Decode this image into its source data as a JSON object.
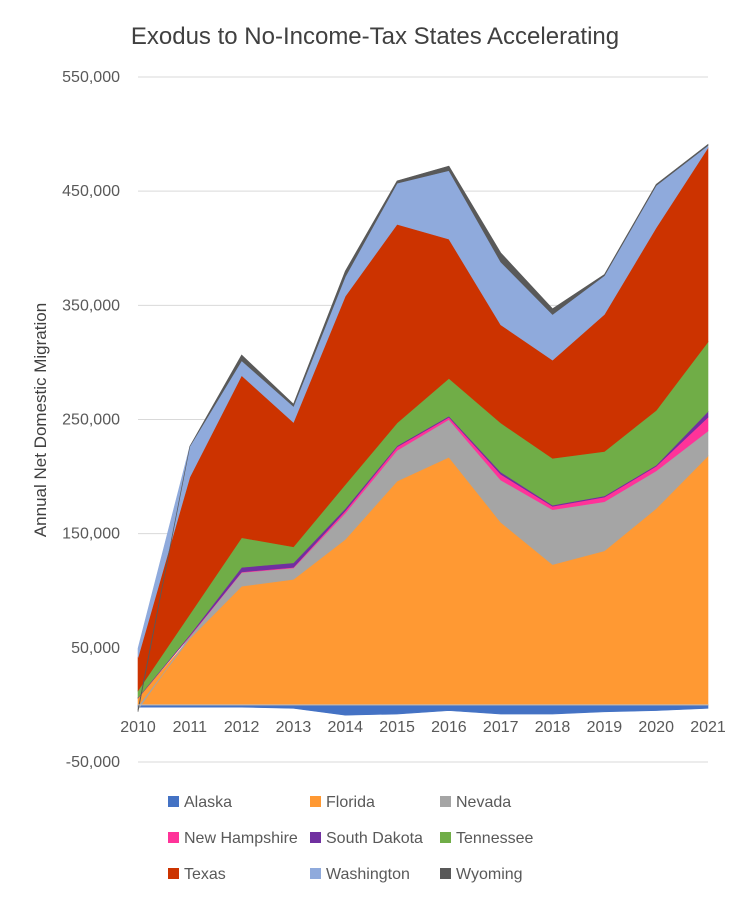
{
  "chart_data": {
    "type": "area",
    "stacked": true,
    "title": "Exodus to No-Income-Tax States Accelerating",
    "xlabel": "",
    "ylabel": "Annual Net Domestic Migration",
    "x": [
      "2010",
      "2011",
      "2012",
      "2013",
      "2014",
      "2015",
      "2016",
      "2017",
      "2018",
      "2019",
      "2020",
      "2021"
    ],
    "ylim": [
      -50000,
      550000
    ],
    "yticks": [
      -50000,
      50000,
      150000,
      250000,
      350000,
      450000,
      550000
    ],
    "ytick_labels": [
      "-50,000",
      "50,000",
      "150,000",
      "250,000",
      "350,000",
      "450,000",
      "550,000"
    ],
    "grid": "horizontal",
    "legend_position": "bottom",
    "series": [
      {
        "name": "Alaska",
        "color": "#4472C4",
        "values": [
          -2000,
          -2000,
          -2000,
          -3000,
          -9000,
          -8000,
          -5000,
          -8000,
          -8000,
          -6000,
          -5000,
          -3000
        ]
      },
      {
        "name": "Florida",
        "color": "#FF9933",
        "values": [
          6000,
          58000,
          104000,
          110000,
          145000,
          196000,
          217000,
          160000,
          123000,
          135000,
          172000,
          218000
        ]
      },
      {
        "name": "Nevada",
        "color": "#A5A5A5",
        "values": [
          -2000,
          2000,
          12000,
          10000,
          23000,
          27000,
          33000,
          37000,
          48000,
          43000,
          33000,
          22000
        ]
      },
      {
        "name": "New Hampshire",
        "color": "#FF3399",
        "values": [
          0,
          500,
          500,
          500,
          2000,
          3000,
          2000,
          5000,
          3000,
          4000,
          4000,
          12000
        ]
      },
      {
        "name": "South Dakota",
        "color": "#7030A0",
        "values": [
          500,
          1000,
          4000,
          4000,
          2000,
          1000,
          1000,
          2000,
          1000,
          1000,
          1000,
          5000
        ]
      },
      {
        "name": "Tennessee",
        "color": "#70AD47",
        "values": [
          6000,
          18000,
          26000,
          14000,
          21000,
          20000,
          33000,
          43000,
          41000,
          39000,
          48000,
          61000
        ]
      },
      {
        "name": "Texas",
        "color": "#CC3300",
        "values": [
          29000,
          120000,
          142000,
          109000,
          165000,
          174000,
          122000,
          86000,
          86000,
          120000,
          160000,
          170000
        ]
      },
      {
        "name": "Washington",
        "color": "#8FAADC",
        "values": [
          8000,
          27000,
          13000,
          14000,
          17000,
          36000,
          60000,
          55000,
          40000,
          34000,
          37000,
          2000
        ]
      },
      {
        "name": "Wyoming",
        "color": "#595959",
        "values": [
          -2000,
          0,
          5000,
          2000,
          5000,
          2000,
          4000,
          8000,
          5000,
          1000,
          1000,
          1000
        ]
      }
    ]
  }
}
